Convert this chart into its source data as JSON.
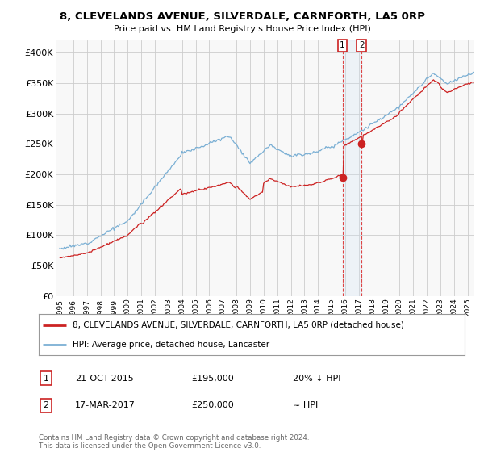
{
  "title": "8, CLEVELANDS AVENUE, SILVERDALE, CARNFORTH, LA5 0RP",
  "subtitle": "Price paid vs. HM Land Registry's House Price Index (HPI)",
  "ylim": [
    0,
    420000
  ],
  "yticks": [
    0,
    50000,
    100000,
    150000,
    200000,
    250000,
    300000,
    350000,
    400000
  ],
  "ytick_labels": [
    "£0",
    "£50K",
    "£100K",
    "£150K",
    "£200K",
    "£250K",
    "£300K",
    "£350K",
    "£400K"
  ],
  "hpi_color": "#7aafd4",
  "price_color": "#cc2222",
  "shade_color": "#d0e4f7",
  "vline_color": "#dd4444",
  "transaction1_date": "21-OCT-2015",
  "transaction1_price": 195000,
  "transaction1_hpi": "20% ↓ HPI",
  "transaction1_x": 2015.8,
  "transaction2_date": "17-MAR-2017",
  "transaction2_price": 250000,
  "transaction2_hpi": "≈ HPI",
  "transaction2_x": 2017.21,
  "shade_x1": 2015.8,
  "shade_x2": 2017.21,
  "legend_label1": "8, CLEVELANDS AVENUE, SILVERDALE, CARNFORTH, LA5 0RP (detached house)",
  "legend_label2": "HPI: Average price, detached house, Lancaster",
  "footer": "Contains HM Land Registry data © Crown copyright and database right 2024.\nThis data is licensed under the Open Government Licence v3.0.",
  "bg_color": "#ffffff",
  "plot_bg_color": "#f8f8f8",
  "grid_color": "#cccccc",
  "xlim_left": 1994.7,
  "xlim_right": 2025.5
}
